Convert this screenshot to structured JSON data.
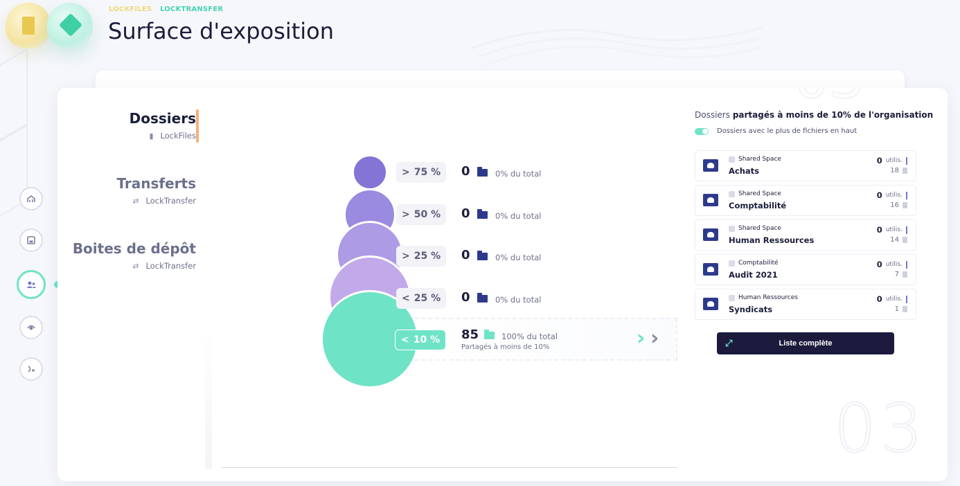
{
  "breadcrumb": {
    "lockfiles": "LOCKFILES",
    "locktransfer": "LOCKTRANSFER"
  },
  "page": {
    "title": "Surface d'exposition"
  },
  "categories": [
    {
      "title": "Dossiers",
      "sub": "LockFiles",
      "icon": "file-icon",
      "active": true
    },
    {
      "title": "Transferts",
      "sub": "LockTransfer",
      "icon": "transfer-icon",
      "active": false
    },
    {
      "title": "Boites de dépôt",
      "sub": "LockTransfer",
      "icon": "transfer-icon",
      "active": false
    }
  ],
  "rail": [
    "dashboard-icon",
    "save-icon",
    "users-icon",
    "exposure-icon",
    "logout-icon"
  ],
  "watermark": "03",
  "exposure_rows": [
    {
      "badge": "75 %",
      "chevron": ">",
      "count": "0",
      "pct": "0% du total",
      "color": "#8374d6"
    },
    {
      "badge": "50 %",
      "chevron": ">",
      "count": "0",
      "pct": "0% du total",
      "color": "#9a8ae0"
    },
    {
      "badge": "25 %",
      "chevron": ">",
      "count": "0",
      "pct": "0% du total",
      "color": "#ad9be6"
    },
    {
      "badge": "25 %",
      "chevron": "<",
      "count": "0",
      "pct": "0% du total",
      "color": "#c2a9ea"
    },
    {
      "badge": "10 %",
      "chevron": "<",
      "count": "85",
      "pct": "100% du total",
      "sub": "Partagés à moins de 10%",
      "color": "#6fe3c6"
    }
  ],
  "panel": {
    "title_muted": "Dossiers",
    "title_main": "partagés à moins de 10% de l'organisation",
    "toggle_label": "Dossiers avec le plus de fichiers en haut",
    "users_unit": "utilis.",
    "items": [
      {
        "tag": "Shared Space",
        "name": "Achats",
        "users": "0",
        "files": "18"
      },
      {
        "tag": "Shared Space",
        "name": "Comptabilité",
        "users": "0",
        "files": "16"
      },
      {
        "tag": "Shared Space",
        "name": "Human Ressources",
        "users": "0",
        "files": "14"
      },
      {
        "tag": "Comptabilité",
        "name": "Audit 2021",
        "users": "0",
        "files": "7"
      },
      {
        "tag": "Human Ressources",
        "name": "Syndicats",
        "users": "0",
        "files": "1"
      }
    ],
    "button_label": "Liste complète"
  },
  "colors": {
    "accent": "#6fe3c6",
    "navy": "#1c1b3d",
    "folder": "#2d3a8c",
    "tab_bar": "#f5b17a"
  }
}
